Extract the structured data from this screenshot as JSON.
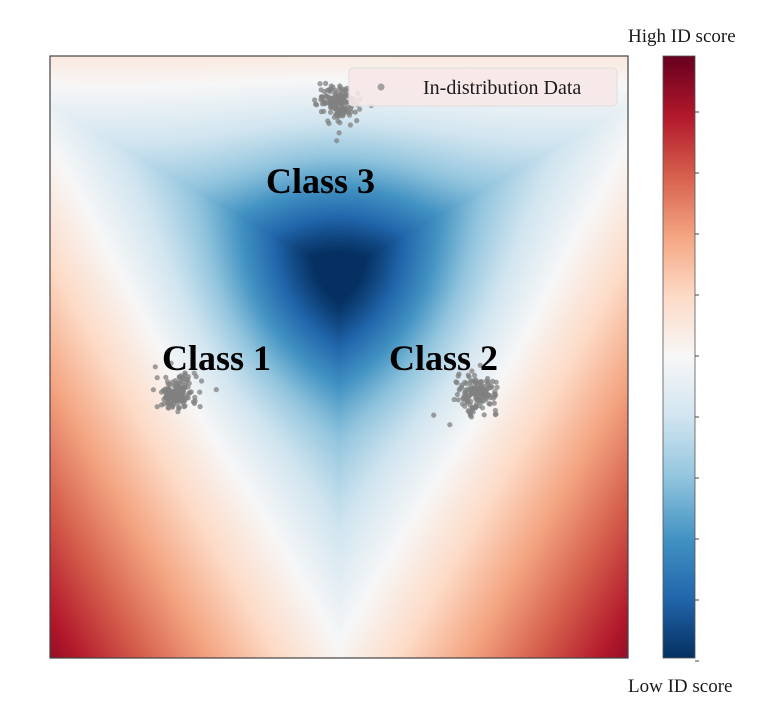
{
  "chart_data": {
    "type": "heatmap",
    "title": "",
    "xlabel": "",
    "ylabel": "",
    "grid": false,
    "legend": {
      "placement": "top-right",
      "entries": [
        "In-distribution Data"
      ]
    },
    "colormap": {
      "name": "RdBu_r",
      "stops": [
        "#053061",
        "#2166ac",
        "#4393c3",
        "#92c5de",
        "#d1e5f0",
        "#f7f7f7",
        "#fddbc7",
        "#f4a582",
        "#d6604d",
        "#b2182b",
        "#67001f"
      ]
    },
    "colorbar": {
      "top_label": "High ID score",
      "bottom_label": "Low ID score"
    },
    "series": [
      {
        "name": "In-distribution Data",
        "type": "scatter",
        "color": "#808080",
        "clusters": [
          {
            "label": "Class 1",
            "center": [
              -1.35,
              -0.8
            ]
          },
          {
            "label": "Class 2",
            "center": [
              1.15,
              -0.8
            ]
          },
          {
            "label": "Class 3",
            "center": [
              0.0,
              1.6
            ]
          }
        ]
      }
    ],
    "annotations": [
      "Class 1",
      "Class 2",
      "Class 3"
    ]
  }
}
